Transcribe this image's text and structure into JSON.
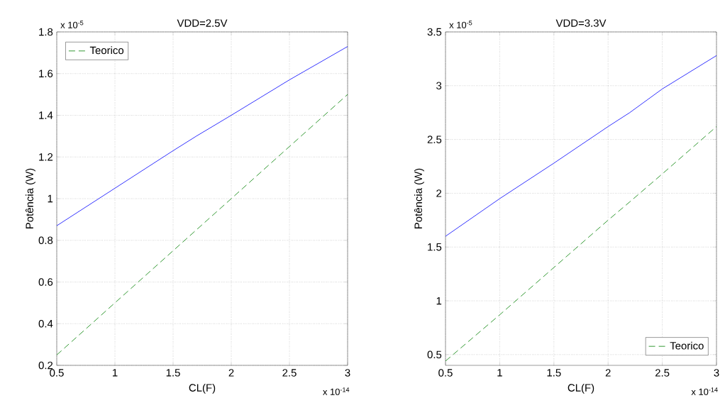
{
  "chart_data": [
    {
      "type": "line",
      "title": "VDD=2.5V",
      "xlabel": "CL(F)",
      "ylabel": "Potência (W)",
      "x": [
        0.5,
        1.0,
        1.5,
        1.7,
        2.0,
        2.5,
        3.0
      ],
      "series": [
        {
          "color": "#0000ff",
          "line_style": "solid",
          "values": [
            0.87,
            1.05,
            1.23,
            1.3,
            1.4,
            1.57,
            1.73
          ]
        },
        {
          "name": "Teorico",
          "color": "#008000",
          "line_style": "dashed",
          "values": [
            0.25,
            0.5,
            0.75,
            0.85,
            1.0,
            1.25,
            1.5
          ]
        }
      ],
      "xlim": [
        0.5,
        3
      ],
      "xticks": [
        0.5,
        1,
        1.5,
        2,
        2.5,
        3
      ],
      "ylim": [
        0.2,
        1.8
      ],
      "yticks": [
        0.2,
        0.4,
        0.6,
        0.8,
        1,
        1.2,
        1.4,
        1.6,
        1.8
      ],
      "grid": true,
      "legend": "top left",
      "annotations": [
        "x 10$^{-5}$",
        "x 10$^{-14}$"
      ]
    },
    {
      "type": "line",
      "title": "VDD=3.3V",
      "xlabel": "CL(F)",
      "ylabel": "Potência (W)",
      "x": [
        0.5,
        1.0,
        1.5,
        2.0,
        2.2,
        2.5,
        3.0
      ],
      "series": [
        {
          "color": "#0000ff",
          "line_style": "solid",
          "values": [
            1.6,
            1.95,
            2.28,
            2.62,
            2.75,
            2.97,
            3.28
          ]
        },
        {
          "name": "Teorico",
          "color": "#008000",
          "line_style": "dashed",
          "values": [
            0.44,
            0.87,
            1.31,
            1.75,
            1.92,
            2.18,
            2.62
          ]
        }
      ],
      "xlim": [
        0.5,
        3
      ],
      "xticks": [
        0.5,
        1,
        1.5,
        2,
        2.5,
        3
      ],
      "ylim": [
        0.4,
        3.5
      ],
      "yticks": [
        0.5,
        1,
        1.5,
        2,
        2.5,
        3,
        3.5
      ],
      "grid": true,
      "legend": "bottom right",
      "annotations": [
        "x 10$^{-5}$",
        "x 10$^{-14}$"
      ]
    }
  ]
}
